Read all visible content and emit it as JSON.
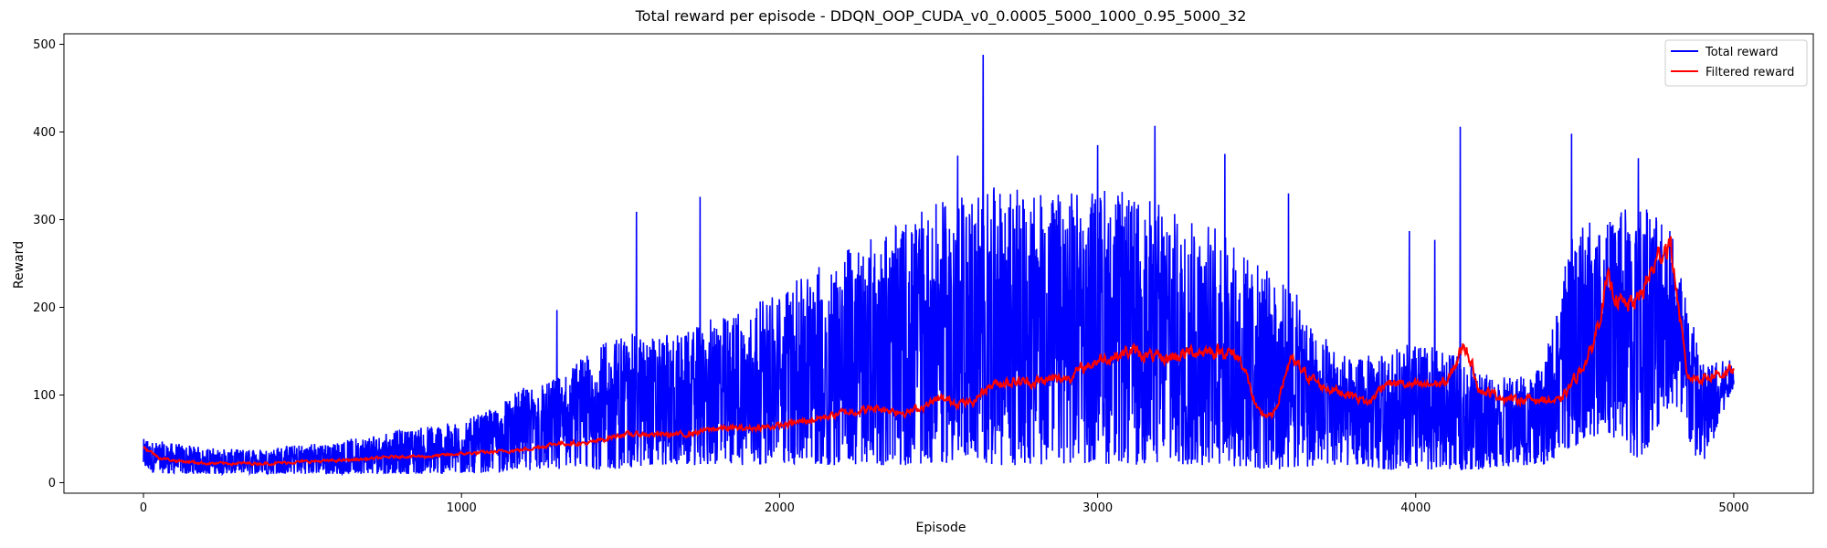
{
  "chart_data": {
    "type": "line",
    "title": "Total reward per episode - DDQN_OOP_CUDA_v0_0.0005_5000_1000_0.95_5000_32",
    "xlabel": "Episode",
    "ylabel": "Reward",
    "xlim": [
      -250,
      5250
    ],
    "ylim": [
      -12,
      512
    ],
    "x_ticks": [
      0,
      1000,
      2000,
      3000,
      4000,
      5000
    ],
    "y_ticks": [
      0,
      100,
      200,
      300,
      400,
      500
    ],
    "grid": false,
    "legend_position": "top-right",
    "series": [
      {
        "name": "Total reward",
        "color": "#0000ff",
        "style": "noisy raw per-episode reward",
        "x": [
          0,
          100,
          200,
          300,
          400,
          500,
          600,
          700,
          800,
          900,
          1000,
          1100,
          1200,
          1300,
          1400,
          1500,
          1600,
          1700,
          1800,
          1900,
          2000,
          2100,
          2200,
          2300,
          2400,
          2500,
          2600,
          2700,
          2800,
          2900,
          3000,
          3100,
          3200,
          3300,
          3400,
          3500,
          3600,
          3700,
          3800,
          3900,
          4000,
          4100,
          4200,
          4300,
          4400,
          4500,
          4600,
          4700,
          4800,
          4900,
          5000
        ],
        "y_upper": [
          50,
          45,
          40,
          38,
          40,
          45,
          45,
          55,
          60,
          65,
          70,
          85,
          110,
          120,
          150,
          170,
          170,
          170,
          190,
          200,
          220,
          240,
          270,
          280,
          300,
          320,
          330,
          340,
          330,
          330,
          340,
          330,
          320,
          300,
          290,
          250,
          230,
          170,
          140,
          150,
          160,
          150,
          130,
          120,
          130,
          300,
          300,
          330,
          300,
          140,
          140
        ],
        "y_lower": [
          12,
          10,
          10,
          10,
          10,
          10,
          10,
          10,
          10,
          10,
          10,
          12,
          14,
          14,
          14,
          16,
          20,
          20,
          20,
          20,
          22,
          20,
          20,
          20,
          20,
          22,
          24,
          20,
          20,
          22,
          22,
          20,
          20,
          20,
          20,
          15,
          15,
          20,
          20,
          15,
          15,
          15,
          15,
          20,
          20,
          40,
          60,
          20,
          90,
          15,
          110
        ],
        "spikes": [
          {
            "x": 1550,
            "y": 309
          },
          {
            "x": 1750,
            "y": 326
          },
          {
            "x": 1300,
            "y": 197
          },
          {
            "x": 2640,
            "y": 488
          },
          {
            "x": 2560,
            "y": 373
          },
          {
            "x": 3180,
            "y": 407
          },
          {
            "x": 3000,
            "y": 385
          },
          {
            "x": 3400,
            "y": 375
          },
          {
            "x": 4140,
            "y": 406
          },
          {
            "x": 4490,
            "y": 398
          },
          {
            "x": 4700,
            "y": 370
          },
          {
            "x": 3600,
            "y": 330
          },
          {
            "x": 3980,
            "y": 287
          },
          {
            "x": 4060,
            "y": 277
          }
        ]
      },
      {
        "name": "Filtered reward",
        "color": "#ff0000",
        "x": [
          0,
          50,
          100,
          200,
          300,
          400,
          500,
          600,
          700,
          800,
          900,
          1000,
          1100,
          1200,
          1300,
          1400,
          1500,
          1600,
          1700,
          1800,
          1900,
          2000,
          2100,
          2200,
          2300,
          2400,
          2500,
          2600,
          2650,
          2700,
          2800,
          2900,
          3000,
          3100,
          3200,
          3300,
          3400,
          3450,
          3500,
          3550,
          3600,
          3700,
          3800,
          3850,
          3900,
          4000,
          4100,
          4150,
          4200,
          4300,
          4400,
          4450,
          4500,
          4550,
          4600,
          4650,
          4700,
          4750,
          4780,
          4800,
          4850,
          4900,
          5000
        ],
        "y": [
          40,
          28,
          25,
          22,
          22,
          22,
          24,
          25,
          27,
          30,
          30,
          33,
          35,
          38,
          45,
          45,
          55,
          55,
          55,
          62,
          62,
          65,
          72,
          80,
          85,
          80,
          95,
          90,
          110,
          115,
          115,
          120,
          140,
          150,
          140,
          150,
          150,
          140,
          80,
          75,
          140,
          110,
          100,
          90,
          115,
          110,
          115,
          160,
          105,
          95,
          95,
          92,
          120,
          150,
          230,
          200,
          210,
          250,
          270,
          270,
          120,
          120,
          128
        ]
      }
    ]
  }
}
